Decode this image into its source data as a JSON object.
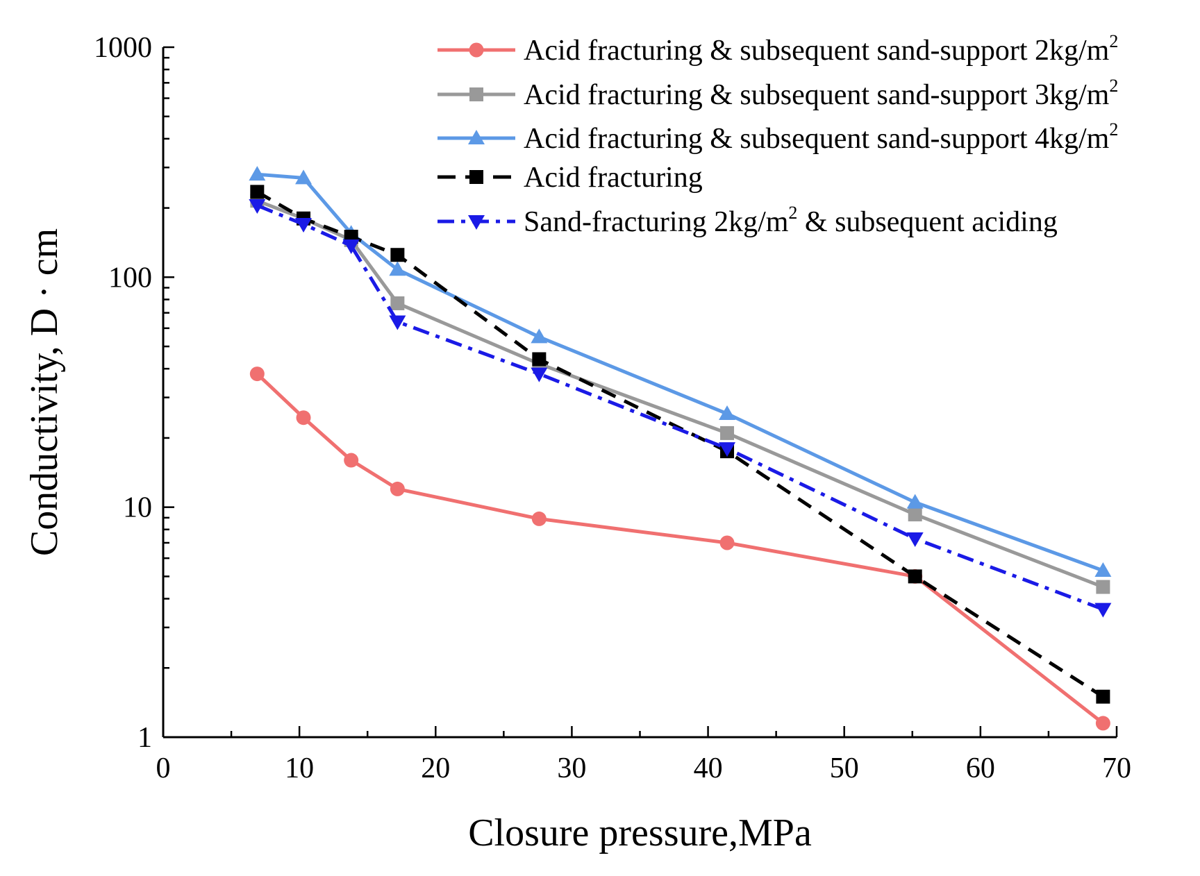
{
  "chart_data": {
    "type": "line",
    "title": "",
    "xlabel": "Closure pressure,MPa",
    "ylabel": "Conductivity,  D · cm",
    "xlim": [
      0,
      70
    ],
    "ylim": [
      1,
      1000
    ],
    "yscale": "log",
    "xticks": [
      0,
      10,
      20,
      30,
      40,
      50,
      60,
      70
    ],
    "xtick_labels": [
      "0",
      "10",
      "20",
      "30",
      "40",
      "50",
      "60",
      "70"
    ],
    "yticks": [
      1,
      10,
      100,
      1000
    ],
    "ytick_labels": [
      "1",
      "10",
      "100",
      "1000"
    ],
    "grid": false,
    "legend_position": "top-right",
    "x": [
      6.9,
      10.3,
      13.8,
      17.2,
      27.6,
      41.4,
      55.2,
      69.0
    ],
    "series": [
      {
        "name": "Acid fracturing & subsequent sand-support 2kg/m2",
        "legend_main": "Acid fracturing & subsequent sand-support 2kg/m",
        "legend_sup": "2",
        "color": "#f07070",
        "marker": "circle",
        "dash": "solid",
        "values": [
          38,
          24.5,
          16,
          12,
          8.9,
          7,
          5,
          1.15
        ]
      },
      {
        "name": "Acid fracturing & subsequent sand-support 3kg/m2",
        "legend_main": "Acid fracturing & subsequent sand-support 3kg/m",
        "legend_sup": "2",
        "color": "#999999",
        "marker": "square",
        "dash": "solid",
        "values": [
          215,
          180,
          145,
          77,
          42,
          21,
          9.3,
          4.5
        ]
      },
      {
        "name": "Acid fracturing & subsequent sand-support 4kg/m2",
        "legend_main": "Acid fracturing & subsequent sand-support 4kg/m",
        "legend_sup": "2",
        "color": "#5c99e6",
        "marker": "triangle-up",
        "dash": "solid",
        "values": [
          280,
          270,
          155,
          108,
          55,
          25.5,
          10.5,
          5.3
        ]
      },
      {
        "name": "Acid fracturing",
        "legend_main": "Acid fracturing",
        "legend_sup": "",
        "color": "#000000",
        "marker": "square",
        "dash": "dashed",
        "values": [
          235,
          180,
          150,
          125,
          44,
          17.5,
          5,
          1.5
        ]
      },
      {
        "name": "Sand-fracturing 2kg/m2 & subsequent aciding",
        "legend_main": "Sand-fracturing 2kg/m",
        "legend_sup": "2",
        "legend_tail": " & subsequent aciding",
        "color": "#1a1ae6",
        "marker": "triangle-down",
        "dash": "dashdot",
        "values": [
          205,
          170,
          137,
          64,
          38,
          18,
          7.3,
          3.6
        ]
      }
    ]
  }
}
